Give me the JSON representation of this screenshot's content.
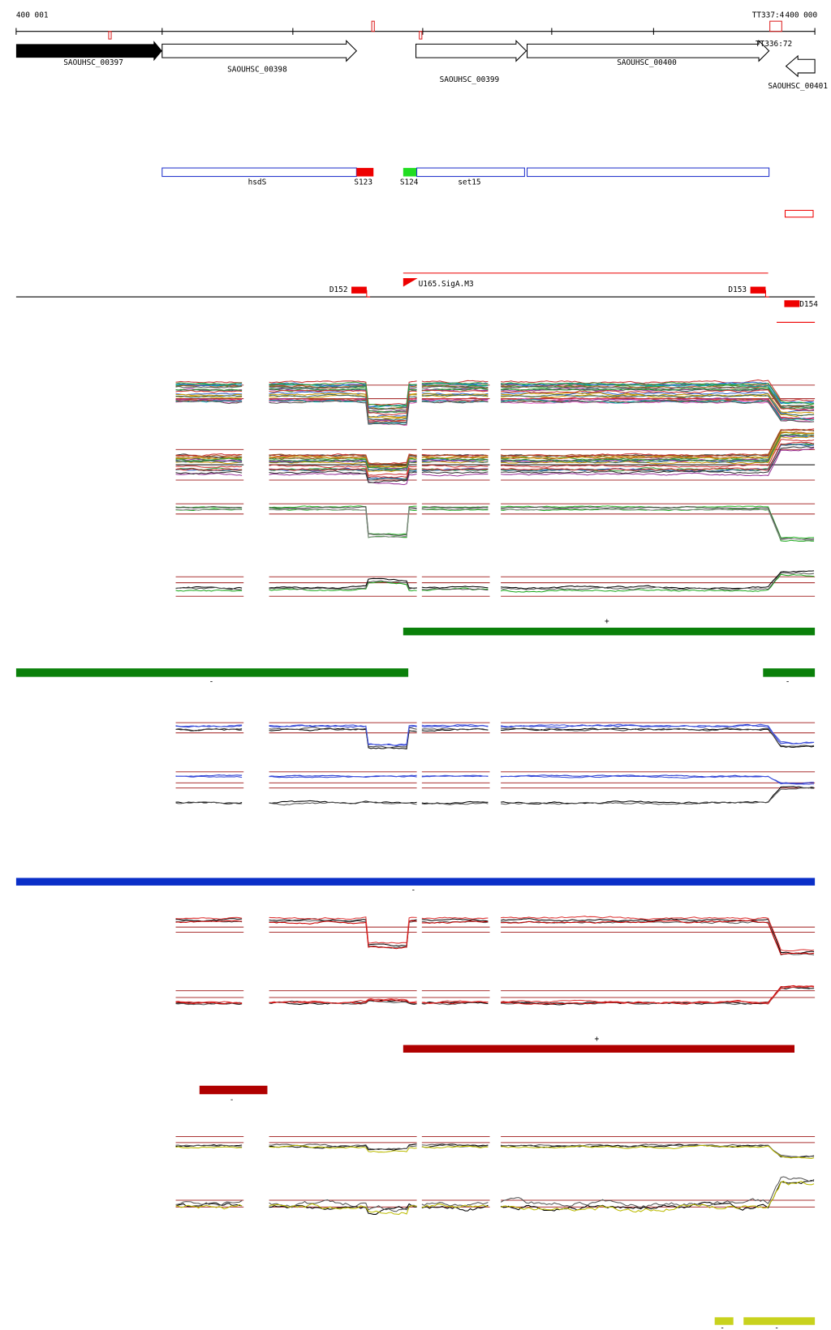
{
  "header": {
    "left_coord": "400 001",
    "right_coord": "400 000",
    "right_tag": "TT337:4"
  },
  "terminator": "TT336:72",
  "genes": [
    "SAOUHSC_00397",
    "SAOUHSC_00398",
    "SAOUHSC_00399",
    "SAOUHSC_00400",
    "SAOUHSC_00401"
  ],
  "features": {
    "operon": "hsdS",
    "s_left": "S123",
    "s_right": "S124",
    "set": "set15"
  },
  "promoters": {
    "d_left": "D152",
    "upshift": "U165.SigA.M3",
    "d_mid": "D153",
    "d_right": "D154"
  },
  "strand_marks": {
    "green_plus": "+",
    "green_minus_left": "-",
    "green_minus_right": "-",
    "blue_minus": "-",
    "red_plus": "+",
    "red_minus": "-",
    "yellow_minus_left": "-",
    "yellow_minus_right": "-"
  }
}
